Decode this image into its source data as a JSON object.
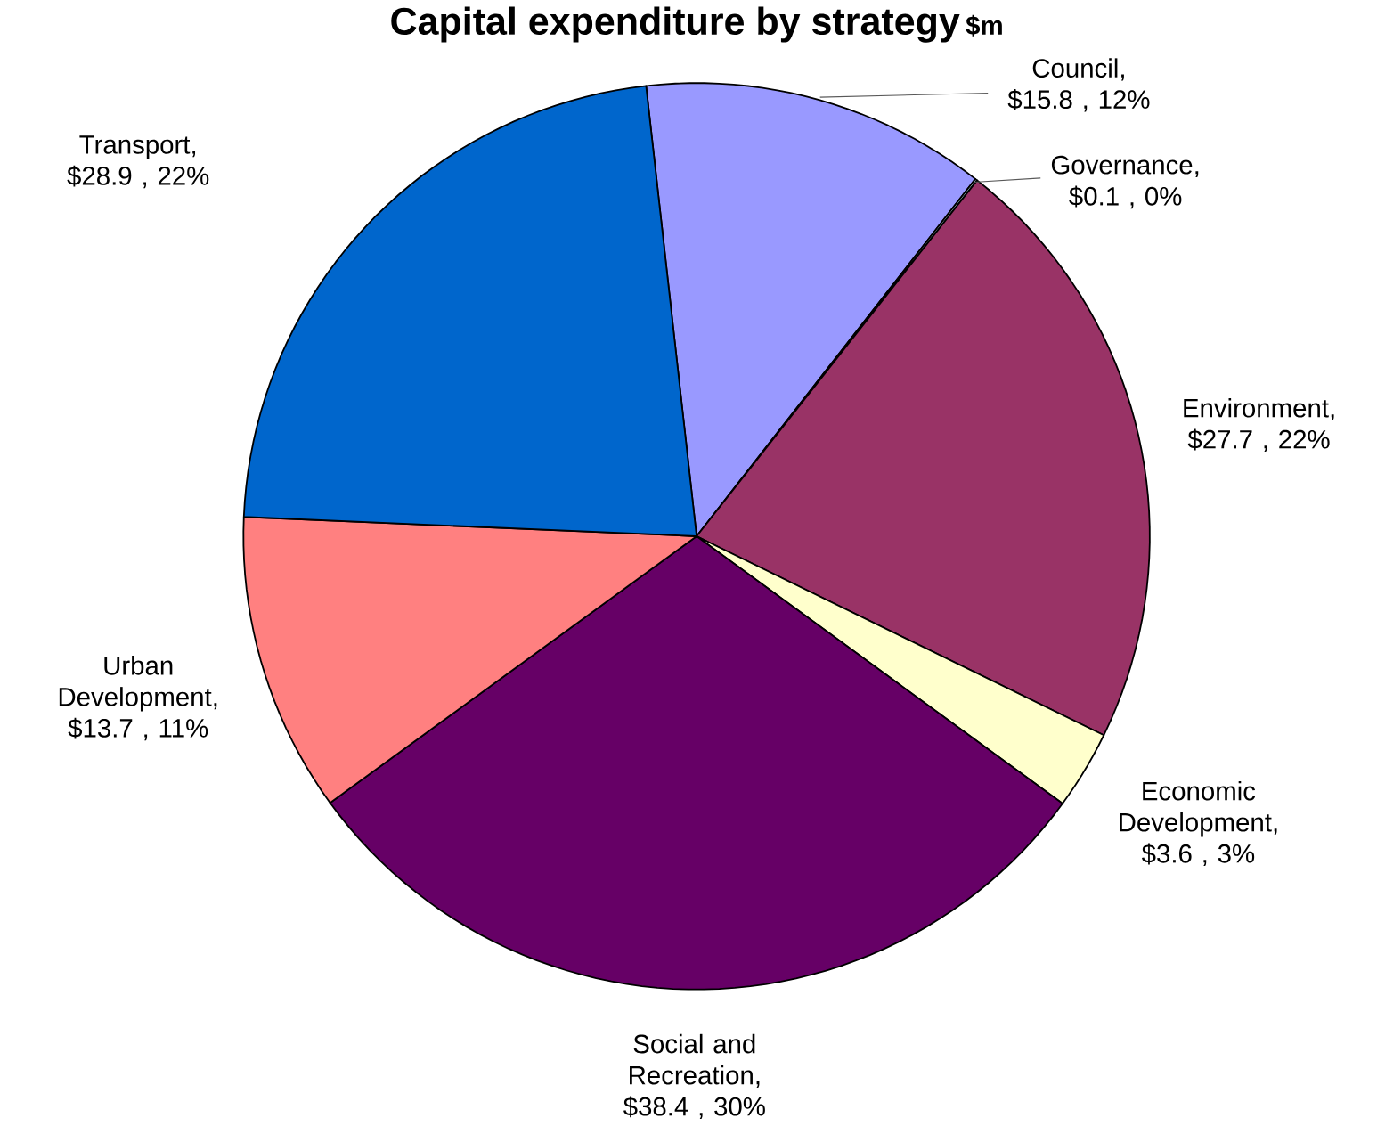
{
  "chart_data": {
    "type": "pie",
    "title": "Capital expenditure by strategy",
    "subtitle": "$m",
    "categories": [
      "Council",
      "Governance",
      "Environment",
      "Economic Development",
      "Social and Recreation",
      "Urban Development",
      "Transport"
    ],
    "values": [
      15.8,
      0.1,
      27.7,
      3.6,
      38.4,
      13.7,
      28.9
    ],
    "value_labels": [
      ",  $15.8 , 12%",
      ",  $0.1 , 0%",
      ", $27.7 , 22%",
      ", $3.6 , 3%",
      ",  $38.4 , 30%",
      ", $13.7 , 11%",
      ",  $28.9 , 22%"
    ],
    "colors": [
      "#9999ff",
      "#ccffff",
      "#993366",
      "#ffffcc",
      "#660066",
      "#ff8080",
      "#0066cc"
    ]
  }
}
